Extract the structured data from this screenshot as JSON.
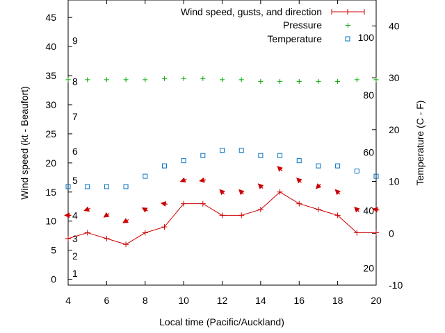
{
  "chart_data": {
    "type": "line",
    "x": [
      4,
      5,
      6,
      7,
      8,
      9,
      10,
      11,
      12,
      13,
      14,
      15,
      16,
      17,
      18,
      19,
      20
    ],
    "xlabel": "Local time (Pacific/Auckland)",
    "ylabel": "Wind speed (kt - Beaufort)",
    "y2label": "Temperature (C - F)",
    "xlim": [
      4,
      20
    ],
    "ylim": [
      -1,
      48
    ],
    "y2lim": [
      -10,
      45
    ],
    "x_ticks": [
      4,
      6,
      8,
      10,
      12,
      14,
      16,
      18,
      20
    ],
    "y_ticks": [
      0,
      5,
      10,
      15,
      20,
      25,
      30,
      35,
      40,
      45
    ],
    "y2_ticks": [
      -10,
      0,
      10,
      20,
      30,
      40
    ],
    "beaufort_labels": [
      {
        "text": "1",
        "y": 1
      },
      {
        "text": "2",
        "y": 4
      },
      {
        "text": "3",
        "y": 7
      },
      {
        "text": "4",
        "y": 11
      },
      {
        "text": "5",
        "y": 17
      },
      {
        "text": "6",
        "y": 22
      },
      {
        "text": "7",
        "y": 28
      },
      {
        "text": "8",
        "y": 34
      },
      {
        "text": "9",
        "y": 41
      }
    ],
    "fahrenheit_labels": [
      {
        "text": "20",
        "t": -6.7
      },
      {
        "text": "40",
        "t": 4.4
      },
      {
        "text": "60",
        "t": 15.6
      },
      {
        "text": "80",
        "t": 26.7
      },
      {
        "text": "100",
        "t": 37.8
      }
    ],
    "series": [
      {
        "name": "Wind speed, gusts, and direction",
        "type": "line",
        "color": "#cc0000",
        "values": [
          7,
          8,
          7,
          6,
          8,
          9,
          13,
          13,
          11,
          11,
          12,
          15,
          13,
          12,
          11,
          8,
          8
        ],
        "direction_arrows": [
          {
            "x": 4,
            "y": 11,
            "angle": 180
          },
          {
            "x": 5,
            "y": 12,
            "angle": 200
          },
          {
            "x": 6,
            "y": 11,
            "angle": 215
          },
          {
            "x": 7,
            "y": 10,
            "angle": 210
          },
          {
            "x": 8,
            "y": 12,
            "angle": 150
          },
          {
            "x": 9,
            "y": 13,
            "angle": 170
          },
          {
            "x": 10,
            "y": 17,
            "angle": 200
          },
          {
            "x": 11,
            "y": 17,
            "angle": 190
          },
          {
            "x": 12,
            "y": 15,
            "angle": 135
          },
          {
            "x": 13,
            "y": 15,
            "angle": 135
          },
          {
            "x": 14,
            "y": 16,
            "angle": 135
          },
          {
            "x": 15,
            "y": 19,
            "angle": 135
          },
          {
            "x": 16,
            "y": 17,
            "angle": 135
          },
          {
            "x": 17,
            "y": 16,
            "angle": 225
          },
          {
            "x": 18,
            "y": 15,
            "angle": 135
          },
          {
            "x": 19,
            "y": 12,
            "angle": 135
          },
          {
            "x": 20,
            "y": 12,
            "angle": 170
          }
        ]
      },
      {
        "name": "Pressure",
        "type": "scatter",
        "marker": "plus",
        "color": "#00aa00",
        "values": [
          34.3,
          34.3,
          34.3,
          34.3,
          34.3,
          34.5,
          34.5,
          34.5,
          34.3,
          34.3,
          34.0,
          34.0,
          34.0,
          34.0,
          34.0,
          34.3,
          34.3
        ]
      },
      {
        "name": "Temperature",
        "type": "scatter",
        "marker": "square",
        "color": "#0070c0",
        "axis": "y2",
        "values": [
          9,
          9,
          9,
          9,
          11,
          13,
          14,
          15,
          16,
          16,
          15,
          15,
          14,
          13,
          13,
          12,
          11
        ]
      }
    ],
    "legend_position": "top-right"
  }
}
